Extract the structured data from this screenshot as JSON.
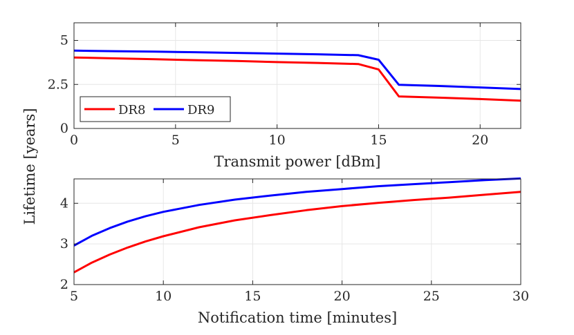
{
  "figure": {
    "ylabel": "Lifetime [years]"
  },
  "chart_data": [
    {
      "type": "line",
      "xlabel": "Transmit power [dBm]",
      "ylabel": "",
      "xlim": [
        0,
        22
      ],
      "ylim": [
        0,
        6
      ],
      "xticks": [
        0,
        5,
        10,
        15,
        20
      ],
      "xtick_labels": [
        "0",
        "5",
        "10",
        "15",
        "20"
      ],
      "yticks": [
        0,
        2.5,
        5
      ],
      "ytick_labels": [
        "0",
        "2.5",
        "5"
      ],
      "grid": true,
      "legend": {
        "placement": "bottom-left",
        "orientation": "horizontal"
      },
      "series": [
        {
          "name": "DR8",
          "color": "#ff0000",
          "x": [
            0,
            2,
            4,
            6,
            8,
            10,
            12,
            14,
            15,
            16,
            18,
            20,
            22
          ],
          "y": [
            4.03,
            3.98,
            3.93,
            3.88,
            3.83,
            3.77,
            3.72,
            3.66,
            3.35,
            1.82,
            1.75,
            1.67,
            1.58
          ]
        },
        {
          "name": "DR9",
          "color": "#0000ff",
          "x": [
            0,
            2,
            4,
            6,
            8,
            10,
            12,
            14,
            15,
            16,
            18,
            20,
            22
          ],
          "y": [
            4.42,
            4.39,
            4.36,
            4.33,
            4.29,
            4.25,
            4.21,
            4.16,
            3.9,
            2.48,
            2.41,
            2.33,
            2.24
          ]
        }
      ]
    },
    {
      "type": "line",
      "xlabel": "Notification time [minutes]",
      "ylabel": "",
      "xlim": [
        5,
        30
      ],
      "ylim": [
        2,
        4.6
      ],
      "xticks": [
        5,
        10,
        15,
        20,
        25,
        30
      ],
      "xtick_labels": [
        "5",
        "10",
        "15",
        "20",
        "25",
        "30"
      ],
      "yticks": [
        2,
        3,
        4
      ],
      "ytick_labels": [
        "2",
        "3",
        "4"
      ],
      "grid": true,
      "series": [
        {
          "name": "DR8",
          "color": "#ff0000",
          "x": [
            5,
            6,
            7,
            8,
            9,
            10,
            12,
            14,
            16,
            18,
            20,
            22,
            24,
            26,
            28,
            30
          ],
          "y": [
            2.3,
            2.54,
            2.74,
            2.91,
            3.06,
            3.19,
            3.41,
            3.58,
            3.71,
            3.83,
            3.93,
            4.01,
            4.08,
            4.14,
            4.21,
            4.28
          ]
        },
        {
          "name": "DR9",
          "color": "#0000ff",
          "x": [
            5,
            6,
            7,
            8,
            9,
            10,
            12,
            14,
            16,
            18,
            20,
            22,
            24,
            26,
            28,
            30
          ],
          "y": [
            2.96,
            3.2,
            3.39,
            3.55,
            3.68,
            3.79,
            3.96,
            4.09,
            4.19,
            4.28,
            4.35,
            4.42,
            4.47,
            4.52,
            4.57,
            4.61
          ]
        }
      ]
    }
  ]
}
